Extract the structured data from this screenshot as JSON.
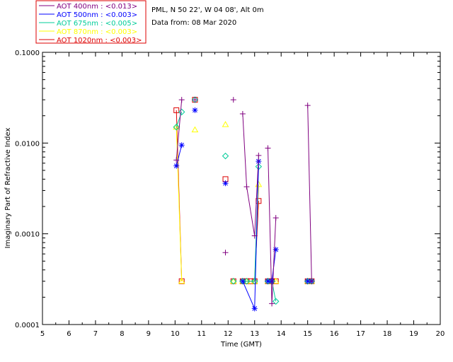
{
  "header": {
    "site_line": "PML, N 50 22', W 04 08', Alt 0m",
    "date_line": "Data from: 08 Mar 2020"
  },
  "chart_data": {
    "type": "line",
    "xlabel": "Time (GMT)",
    "ylabel": "Imaginary Part of Refractive Index",
    "xlim": [
      5,
      20
    ],
    "ylim": [
      0.0001,
      0.1
    ],
    "y_scale": "log",
    "x_ticks": [
      "5",
      "6",
      "7",
      "8",
      "9",
      "10",
      "11",
      "12",
      "13",
      "14",
      "15",
      "16",
      "17",
      "18",
      "19",
      "20"
    ],
    "y_ticks": [
      {
        "value": 0.0001,
        "label": "0.0001"
      },
      {
        "value": 0.001,
        "label": "0.0010"
      },
      {
        "value": 0.01,
        "label": "0.0100"
      },
      {
        "value": 0.1,
        "label": "0.1000"
      }
    ],
    "legend_position": "top-left",
    "series": [
      {
        "name": "AOT  400nm : <0.013>",
        "color": "#800080",
        "marker": "plus",
        "segments": [
          [
            [
              10.05,
              0.0065
            ],
            [
              10.25,
              0.03
            ]
          ],
          [
            [
              10.75,
              0.03
            ]
          ],
          [
            [
              11.9,
              0.00062
            ]
          ],
          [
            [
              12.2,
              0.03
            ]
          ],
          [
            [
              12.55,
              0.021
            ],
            [
              12.7,
              0.0033
            ],
            [
              13.0,
              0.00095
            ],
            [
              13.15,
              0.0073
            ]
          ],
          [
            [
              13.5,
              0.0088
            ],
            [
              13.65,
              0.00017
            ],
            [
              13.8,
              0.0015
            ]
          ],
          [
            [
              15.0,
              0.026
            ],
            [
              15.15,
              0.0003
            ]
          ]
        ]
      },
      {
        "name": "AOT  500nm : <0.003>",
        "color": "#0000ff",
        "marker": "asterisk",
        "segments": [
          [
            [
              10.05,
              0.0056
            ],
            [
              10.25,
              0.0095
            ]
          ],
          [
            [
              10.75,
              0.023
            ]
          ],
          [
            [
              11.9,
              0.0036
            ]
          ],
          [
            [
              12.55,
              0.0003
            ],
            [
              13.0,
              0.00015
            ],
            [
              13.15,
              0.0063
            ]
          ],
          [
            [
              13.5,
              0.0003
            ],
            [
              13.65,
              0.0003
            ],
            [
              13.8,
              0.00067
            ]
          ],
          [
            [
              15.0,
              0.0003
            ],
            [
              15.15,
              0.0003
            ]
          ]
        ]
      },
      {
        "name": "AOT  675nm : <0.005>",
        "color": "#00cc99",
        "marker": "diamond",
        "segments": [
          [
            [
              10.05,
              0.015
            ],
            [
              10.25,
              0.022
            ]
          ],
          [
            [
              10.75,
              0.03
            ]
          ],
          [
            [
              11.9,
              0.0072
            ]
          ],
          [
            [
              12.2,
              0.0003
            ]
          ],
          [
            [
              12.55,
              0.0003
            ],
            [
              12.7,
              0.0003
            ],
            [
              13.0,
              0.0003
            ],
            [
              13.15,
              0.0055
            ]
          ],
          [
            [
              13.5,
              0.0003
            ],
            [
              13.65,
              0.0003
            ],
            [
              13.8,
              0.00018
            ]
          ],
          [
            [
              15.0,
              0.0003
            ],
            [
              15.15,
              0.0003
            ]
          ]
        ]
      },
      {
        "name": "AOT  870nm : <0.003>",
        "color": "#ffff00",
        "marker": "triangle",
        "segments": [
          [
            [
              10.05,
              0.015
            ],
            [
              10.25,
              0.0003
            ]
          ],
          [
            [
              10.75,
              0.014
            ]
          ],
          [
            [
              11.9,
              0.016
            ]
          ],
          [
            [
              12.2,
              0.0003
            ]
          ],
          [
            [
              12.55,
              0.0003
            ],
            [
              12.7,
              0.0003
            ],
            [
              13.0,
              0.0003
            ],
            [
              13.15,
              0.0035
            ]
          ],
          [
            [
              13.5,
              0.0003
            ],
            [
              13.65,
              0.0003
            ],
            [
              13.8,
              0.0003
            ]
          ],
          [
            [
              15.0,
              0.0003
            ],
            [
              15.15,
              0.0003
            ]
          ]
        ]
      },
      {
        "name": "AOT 1020nm : <0.003>",
        "color": "#dd0000",
        "marker": "square",
        "segments": [
          [
            [
              10.05,
              0.023
            ],
            [
              10.25,
              0.0003
            ]
          ],
          [
            [
              10.75,
              0.03
            ]
          ],
          [
            [
              11.9,
              0.004
            ]
          ],
          [
            [
              12.2,
              0.0003
            ]
          ],
          [
            [
              12.55,
              0.0003
            ],
            [
              12.7,
              0.0003
            ],
            [
              12.85,
              0.0003
            ],
            [
              13.0,
              0.0003
            ],
            [
              13.15,
              0.0023
            ]
          ],
          [
            [
              13.5,
              0.0003
            ],
            [
              13.65,
              0.0003
            ],
            [
              13.8,
              0.0003
            ]
          ],
          [
            [
              15.0,
              0.0003
            ],
            [
              15.15,
              0.0003
            ]
          ]
        ]
      }
    ]
  }
}
